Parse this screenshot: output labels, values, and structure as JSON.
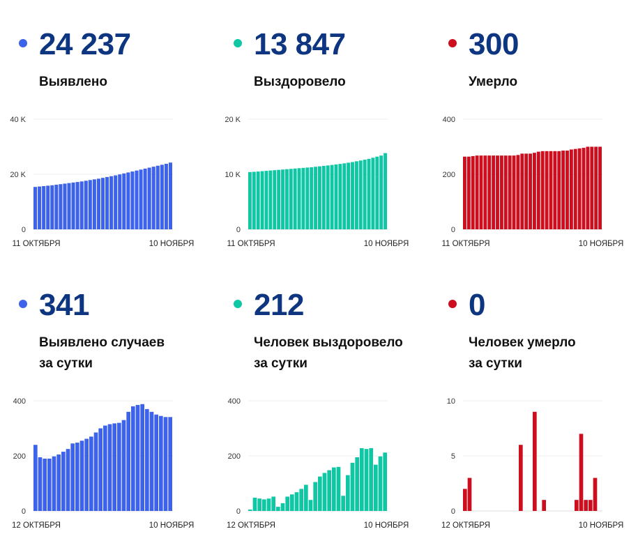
{
  "panels": [
    {
      "value": "24 237",
      "label_lines": [
        "Выявлено"
      ],
      "color": "#3d63ea"
    },
    {
      "value": "13 847",
      "label_lines": [
        "Выздоровело"
      ],
      "color": "#0fc7a5"
    },
    {
      "value": "300",
      "label_lines": [
        "Умерло"
      ],
      "color": "#cc0e1f"
    },
    {
      "value": "341",
      "label_lines": [
        "Выявлено случаев",
        "за сутки"
      ],
      "color": "#3d63ea"
    },
    {
      "value": "212",
      "label_lines": [
        "Человек выздоровело",
        "за сутки"
      ],
      "color": "#0fc7a5"
    },
    {
      "value": "0",
      "label_lines": [
        "Человек умерло",
        "за сутки"
      ],
      "color": "#cc0e1f"
    }
  ],
  "chart_data": [
    {
      "type": "bar",
      "series": [
        {
          "values": [
            15400,
            15550,
            15700,
            15850,
            16000,
            16200,
            16400,
            16600,
            16800,
            17000,
            17200,
            17400,
            17650,
            17900,
            18150,
            18400,
            18700,
            19000,
            19300,
            19600,
            19950,
            20300,
            20650,
            21000,
            21350,
            21700,
            22050,
            22400,
            22750,
            23100,
            23450,
            23800,
            24237
          ]
        }
      ],
      "ylim": [
        0,
        40000
      ],
      "y_ticks": [
        "0",
        "20 K",
        "40 K"
      ],
      "x_labels": [
        "11 ОКТЯБРЯ",
        "10 НОЯБРЯ"
      ],
      "color": "#3d63ea"
    },
    {
      "type": "bar",
      "series": [
        {
          "values": [
            10400,
            10450,
            10500,
            10560,
            10620,
            10680,
            10740,
            10800,
            10860,
            10920,
            10980,
            11040,
            11100,
            11160,
            11220,
            11280,
            11360,
            11440,
            11520,
            11600,
            11690,
            11780,
            11880,
            11980,
            12100,
            12220,
            12360,
            12500,
            12650,
            12800,
            13000,
            13200,
            13400,
            13847
          ]
        }
      ],
      "ylim": [
        0,
        20000
      ],
      "y_ticks": [
        "0",
        "10 K",
        "20 K"
      ],
      "x_labels": [
        "11 ОКТЯБРЯ",
        "10 НОЯБРЯ"
      ],
      "color": "#0fc7a5"
    },
    {
      "type": "bar",
      "series": [
        {
          "values": [
            264,
            264,
            266,
            268,
            268,
            268,
            268,
            268,
            268,
            268,
            268,
            268,
            268,
            270,
            275,
            275,
            275,
            278,
            282,
            284,
            284,
            284,
            284,
            284,
            286,
            286,
            290,
            292,
            294,
            296,
            300,
            300,
            300,
            300
          ]
        }
      ],
      "ylim": [
        0,
        400
      ],
      "y_ticks": [
        "0",
        "200",
        "400"
      ],
      "x_labels": [
        "11 ОКТЯБРЯ",
        "10 НОЯБРЯ"
      ],
      "color": "#cc0e1f"
    },
    {
      "type": "bar",
      "series": [
        {
          "values": [
            240,
            195,
            190,
            190,
            198,
            205,
            215,
            225,
            245,
            248,
            255,
            262,
            270,
            285,
            300,
            310,
            315,
            318,
            320,
            330,
            360,
            380,
            385,
            388,
            370,
            360,
            350,
            345,
            341,
            341
          ]
        }
      ],
      "ylim": [
        0,
        400
      ],
      "y_ticks": [
        "0",
        "200",
        "400"
      ],
      "x_labels": [
        "12 ОКТЯБРЯ",
        "10 НОЯБРЯ"
      ],
      "color": "#3d63ea"
    },
    {
      "type": "bar",
      "series": [
        {
          "values": [
            5,
            48,
            45,
            42,
            45,
            52,
            15,
            28,
            52,
            60,
            68,
            80,
            95,
            40,
            105,
            125,
            138,
            148,
            158,
            160,
            55,
            130,
            175,
            195,
            228,
            225,
            228,
            168,
            198,
            212
          ]
        }
      ],
      "ylim": [
        0,
        400
      ],
      "y_ticks": [
        "0",
        "200",
        "400"
      ],
      "x_labels": [
        "12 ОКТЯБРЯ",
        "10 НОЯБРЯ"
      ],
      "color": "#0fc7a5"
    },
    {
      "type": "bar",
      "series": [
        {
          "values": [
            2,
            3,
            0,
            0,
            0,
            0,
            0,
            0,
            0,
            0,
            0,
            0,
            6,
            0,
            0,
            9,
            0,
            1,
            0,
            0,
            0,
            0,
            0,
            0,
            1,
            7,
            1,
            1,
            3,
            0
          ]
        }
      ],
      "ylim": [
        0,
        10
      ],
      "y_ticks": [
        "0",
        "5",
        "10"
      ],
      "x_labels": [
        "12 ОКТЯБРЯ",
        "10 НОЯБРЯ"
      ],
      "color": "#cc0e1f"
    }
  ]
}
